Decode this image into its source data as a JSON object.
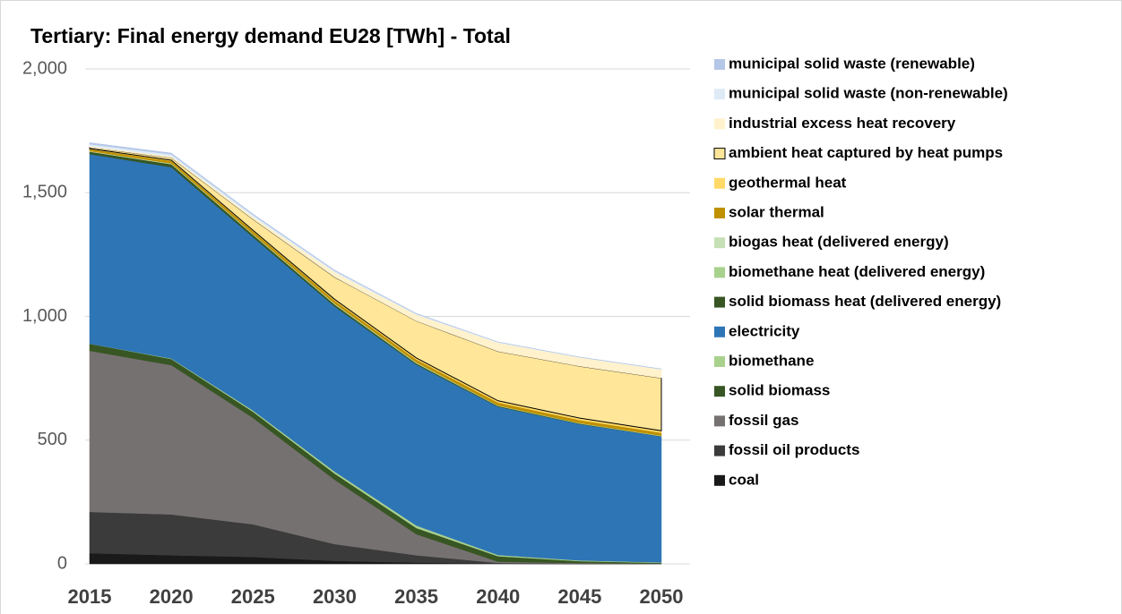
{
  "chart_data": {
    "type": "stacked_area",
    "title": "Tertiary: Final energy demand EU28 [TWh] - Total",
    "x": [
      2015,
      2020,
      2025,
      2030,
      2035,
      2040,
      2045,
      2050
    ],
    "xlim": [
      2015,
      2050
    ],
    "xticks": [
      2015,
      2020,
      2025,
      2030,
      2035,
      2040,
      2045,
      2050
    ],
    "ylim": [
      0,
      2000
    ],
    "yticks": [
      0,
      {
        "value": 500,
        "label": "500"
      },
      {
        "value": 1000,
        "label": "1,000"
      },
      {
        "value": 1500,
        "label": "1,500"
      },
      {
        "value": 2000,
        "label": "2,000"
      }
    ],
    "grid": true,
    "legend": "right",
    "series": [
      {
        "name": "coal",
        "color": "#1a1a1a",
        "values": [
          43,
          35,
          28,
          12,
          5,
          1,
          0,
          0
        ]
      },
      {
        "name": "fossil oil products",
        "color": "#3b3b3b",
        "values": [
          167,
          165,
          132,
          68,
          30,
          3,
          1,
          0
        ]
      },
      {
        "name": "fossil gas",
        "color": "#767171",
        "values": [
          651,
          603,
          430,
          260,
          85,
          5,
          2,
          1
        ]
      },
      {
        "name": "solid biomass",
        "color": "#375623",
        "values": [
          29,
          25,
          25,
          25,
          25,
          22,
          8,
          3
        ]
      },
      {
        "name": "biomethane",
        "color": "#a9d18e",
        "values": [
          0,
          2,
          5,
          8,
          10,
          5,
          3,
          2
        ]
      },
      {
        "name": "electricity",
        "color": "#2e75b6",
        "values": [
          766,
          773,
          700,
          667,
          650,
          599,
          551,
          509
        ]
      },
      {
        "name": "solid biomass heat (delivered energy)",
        "color": "#375623",
        "values": [
          10,
          12,
          10,
          8,
          5,
          3,
          2,
          1
        ]
      },
      {
        "name": "biomethane heat (delivered energy)",
        "color": "#a9d18e",
        "values": [
          0,
          1,
          1,
          2,
          2,
          1,
          1,
          1
        ]
      },
      {
        "name": "biogas heat (delivered energy)",
        "color": "#c5e0b4",
        "values": [
          2,
          2,
          2,
          2,
          2,
          1,
          1,
          1
        ]
      },
      {
        "name": "solar thermal",
        "color": "#bf9000",
        "values": [
          8,
          10,
          12,
          12,
          12,
          12,
          12,
          12
        ]
      },
      {
        "name": "geothermal heat",
        "color": "#ffd966",
        "values": [
          2,
          3,
          3,
          5,
          6,
          7,
          8,
          8
        ]
      },
      {
        "name": "ambient heat captured by heat pumps",
        "color": "#ffe699",
        "outline": "#000000",
        "values": [
          5,
          10,
          45,
          90,
          150,
          200,
          210,
          213
        ]
      },
      {
        "name": "industrial excess heat recovery",
        "color": "#fff2cc",
        "values": [
          5,
          6,
          10,
          20,
          25,
          35,
          35,
          35
        ]
      },
      {
        "name": "municipal solid waste (non-renewable)",
        "color": "#deebf7",
        "values": [
          8,
          8,
          7,
          5,
          3,
          2,
          1,
          1
        ]
      },
      {
        "name": "municipal solid waste (renewable)",
        "color": "#b4c7e7",
        "values": [
          6,
          5,
          4,
          3,
          2,
          1,
          1,
          1
        ]
      }
    ]
  }
}
